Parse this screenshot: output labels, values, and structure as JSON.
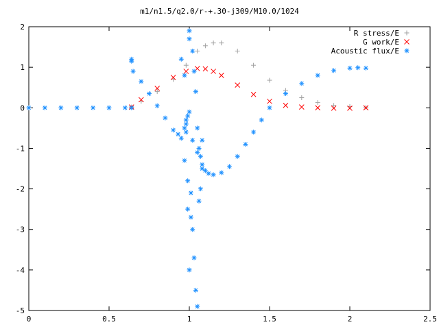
{
  "chart_data": {
    "type": "scatter",
    "title": "m1/n1.5/q2.0/r-+.30-j309/M10.0/1024",
    "xlabel": "",
    "ylabel": "",
    "xlim": [
      0,
      2.5
    ],
    "ylim": [
      -5,
      2
    ],
    "xticks": [
      "0",
      "0.5",
      "1",
      "1.5",
      "2",
      "2.5"
    ],
    "yticks": [
      "2",
      "1",
      "0",
      "-1",
      "-2",
      "-3",
      "-4",
      "-5"
    ],
    "grid": false,
    "legend": "top-right",
    "series": [
      {
        "name": "R stress/E",
        "marker": "+",
        "color": "#a0a0a0",
        "x": [
          0.64,
          0.7,
          0.8,
          0.9,
          0.98,
          1.05,
          1.1,
          1.15,
          1.2,
          1.3,
          1.4,
          1.5,
          1.6,
          1.7,
          1.8,
          1.9,
          2.0,
          2.1
        ],
        "y": [
          0.02,
          0.16,
          0.4,
          0.7,
          1.05,
          1.4,
          1.53,
          1.6,
          1.6,
          1.4,
          1.05,
          0.68,
          0.43,
          0.25,
          0.13,
          0.06,
          0.03,
          0.01
        ]
      },
      {
        "name": "G work/E",
        "marker": "x",
        "color": "#ff0000",
        "x": [
          0.64,
          0.7,
          0.8,
          0.9,
          0.98,
          1.05,
          1.1,
          1.15,
          1.2,
          1.3,
          1.4,
          1.5,
          1.6,
          1.7,
          1.8,
          1.9,
          2.0,
          2.1
        ],
        "y": [
          0.02,
          0.2,
          0.48,
          0.75,
          0.9,
          0.97,
          0.96,
          0.9,
          0.8,
          0.56,
          0.33,
          0.16,
          0.06,
          0.02,
          0.0,
          -0.01,
          -0.01,
          0.0
        ]
      },
      {
        "name": "Acoustic flux/E",
        "marker": "*",
        "color": "#1e90ff",
        "x": [
          0,
          0.1,
          0.2,
          0.3,
          0.4,
          0.5,
          0.6,
          0.64,
          0.65,
          0.7,
          0.75,
          0.8,
          0.85,
          0.9,
          0.93,
          0.95,
          0.97,
          0.98,
          0.99,
          1.0,
          1.02,
          1.05,
          1.08,
          1.1,
          1.12,
          1.15,
          1.2,
          1.25,
          1.3,
          1.35,
          1.4,
          1.45,
          1.5,
          1.6,
          1.7,
          1.8,
          1.9,
          2.0,
          2.05,
          2.1,
          0.64,
          0.64,
          0.95,
          0.97,
          0.97,
          0.99,
          0.99,
          1.0,
          1.0,
          1.01,
          1.01,
          1.02,
          1.02,
          1.03,
          1.03,
          1.04,
          1.04,
          1.05,
          1.05,
          1.06,
          1.06,
          1.07,
          1.07,
          1.08,
          1.08,
          0.98,
          0.98,
          1.0
        ],
        "y": [
          0,
          0,
          0,
          0,
          0,
          0,
          0,
          0,
          0.9,
          0.65,
          0.35,
          0.05,
          -0.25,
          -0.55,
          -0.65,
          -0.75,
          -0.5,
          -0.3,
          -0.2,
          -0.1,
          -0.8,
          -1.1,
          -1.4,
          -1.55,
          -1.62,
          -1.65,
          -1.6,
          -1.45,
          -1.2,
          -0.9,
          -0.6,
          -0.3,
          0.0,
          0.35,
          0.6,
          0.8,
          0.92,
          0.98,
          0.99,
          0.98,
          1.15,
          1.2,
          1.2,
          0.8,
          -1.3,
          -1.8,
          -2.5,
          1.9,
          1.7,
          -2.1,
          -2.7,
          1.4,
          -3.0,
          0.9,
          -3.7,
          0.4,
          -4.5,
          -0.5,
          -4.9,
          -1.0,
          -2.3,
          -1.2,
          -2.0,
          -1.5,
          -0.8,
          -0.6,
          -0.4,
          -4.0
        ]
      }
    ]
  }
}
